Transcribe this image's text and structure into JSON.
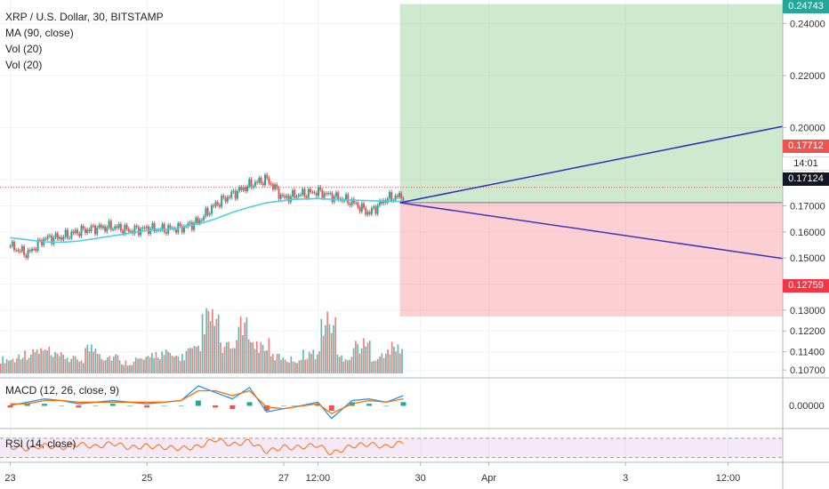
{
  "chart_data": {
    "type": "candlestick",
    "symbol_title": "XRP / U.S. Dollar, 30, BITSTAMP",
    "indicators": [
      "MA (90, close)",
      "Vol (20)",
      "Vol (20)"
    ],
    "price_axis": {
      "ylim": [
        0.104,
        0.249
      ],
      "ticks": [
        "0.24000",
        "0.22000",
        "0.20000",
        "0.18000",
        "0.17000",
        "0.16000",
        "0.15000",
        "0.14000",
        "0.13000",
        "0.12200",
        "0.11400",
        "0.10700"
      ],
      "tick_values": [
        0.24,
        0.22,
        0.2,
        0.18,
        0.17,
        0.16,
        0.15,
        0.14,
        0.13,
        0.122,
        0.114,
        0.107
      ]
    },
    "x_axis": {
      "labels": [
        "23",
        "25",
        "27",
        "12:00",
        "30",
        "Apr",
        "3",
        "12:00"
      ],
      "positions": [
        0,
        2,
        4,
        4.5,
        6,
        7,
        9,
        10.5
      ],
      "xlim": [
        -0.15,
        11.3
      ]
    },
    "last_price": {
      "value": "0.17712",
      "color": "#ef5350"
    },
    "countdown": {
      "value": "14:01"
    },
    "entry_price": {
      "value": "0.17124",
      "color": "#131722"
    },
    "target_price": {
      "value": "0.24743",
      "color": "#26a69a"
    },
    "stop_price": {
      "value": "0.12759",
      "color": "#f23645"
    },
    "position": {
      "entry": 0.17124,
      "target": 0.24743,
      "stop": 0.12759,
      "x_start": 5.7,
      "x_end": 11.3
    },
    "projection_lines": [
      {
        "from": [
          5.7,
          0.1712
        ],
        "to": [
          11.3,
          0.2005
        ],
        "color": "#2e2ebd"
      },
      {
        "from": [
          5.7,
          0.1712
        ],
        "to": [
          11.3,
          0.1498
        ],
        "color": "#4433c0"
      }
    ],
    "price_series_x": [
      0,
      0.25,
      0.5,
      0.75,
      1,
      1.25,
      1.5,
      1.75,
      2,
      2.25,
      2.5,
      2.75,
      3,
      3.25,
      3.5,
      3.75,
      4,
      4.15,
      4.5,
      4.7,
      5,
      5.25,
      5.5,
      5.75
    ],
    "price_series_close": [
      0.1545,
      0.1515,
      0.1575,
      0.158,
      0.1602,
      0.1615,
      0.162,
      0.1605,
      0.1613,
      0.161,
      0.1615,
      0.164,
      0.1705,
      0.1745,
      0.178,
      0.1803,
      0.1728,
      0.174,
      0.1755,
      0.1738,
      0.1715,
      0.1672,
      0.1728,
      0.1738
    ],
    "ma_series": [
      0.1578,
      0.157,
      0.1562,
      0.156,
      0.1565,
      0.1575,
      0.1585,
      0.1595,
      0.1605,
      0.161,
      0.1618,
      0.163,
      0.165,
      0.1675,
      0.1695,
      0.1712,
      0.172,
      0.1725,
      0.1728,
      0.1725,
      0.1722,
      0.172,
      0.1718,
      0.1717
    ],
    "macd": {
      "label": "MACD (12, 26, close, 9)",
      "ticks": [
        "0.00000"
      ],
      "macd_line": [
        0.0,
        0.0002,
        0.0004,
        0.0003,
        0.0001,
        0.0002,
        0.0003,
        0.0002,
        0.0001,
        0.0002,
        0.0003,
        0.0012,
        0.0008,
        0.0004,
        0.0011,
        -0.0004,
        -0.0002,
        -0.0001,
        0.0002,
        -0.0008,
        0.0003,
        0.0004,
        0.0002,
        0.0006
      ],
      "signal_line": [
        0.0001,
        0.0001,
        0.0003,
        0.0003,
        0.0002,
        0.0002,
        0.0002,
        0.0002,
        0.0002,
        0.0002,
        0.0003,
        0.0009,
        0.0009,
        0.0006,
        0.0009,
        -0.0001,
        -0.0002,
        -0.0001,
        0.0001,
        -0.0005,
        0.0001,
        0.0003,
        0.0002,
        0.0004
      ]
    },
    "rsi": {
      "label": "RSI (14, close)",
      "levels": [
        70,
        30
      ],
      "values": [
        52,
        48,
        55,
        50,
        58,
        52,
        60,
        50,
        54,
        51,
        49,
        52,
        68,
        56,
        64,
        42,
        52,
        50,
        56,
        38,
        54,
        58,
        52,
        62
      ]
    },
    "volume": [
      0.25,
      0.35,
      0.4,
      0.3,
      0.25,
      0.45,
      0.3,
      0.2,
      0.25,
      0.35,
      0.3,
      0.4,
      0.95,
      0.45,
      0.8,
      0.5,
      0.3,
      0.25,
      0.35,
      0.9,
      0.3,
      0.5,
      0.3,
      0.45
    ]
  }
}
